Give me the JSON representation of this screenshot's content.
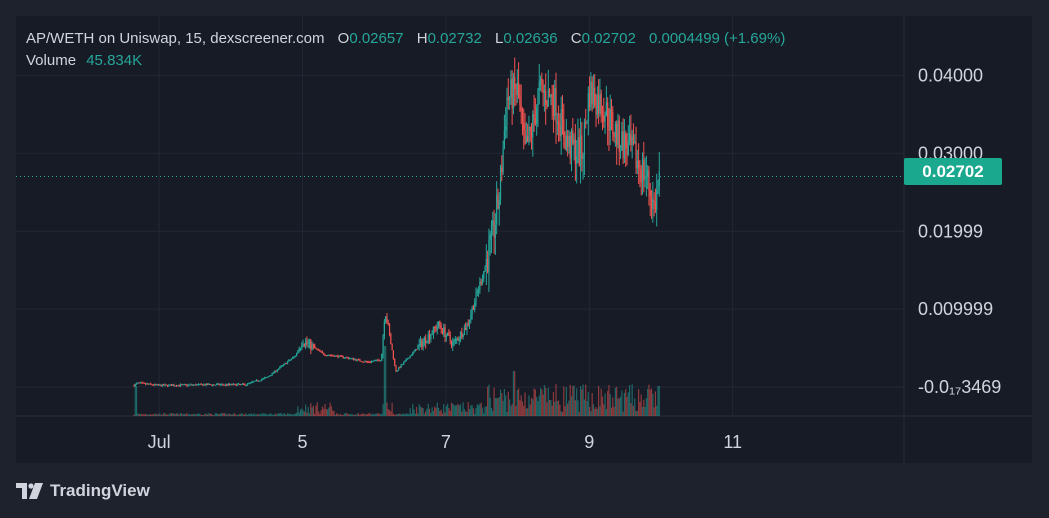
{
  "legend": {
    "title": "AP/WETH on Uniswap, 15, dexscreener.com",
    "o_label": "O",
    "o_value": "0.02657",
    "h_label": "H",
    "h_value": "0.02732",
    "l_label": "L",
    "l_value": "0.02636",
    "c_label": "C",
    "c_value": "0.02702",
    "change": "0.0004499 (+1.69%)",
    "volume_label": "Volume",
    "volume_value": "45.834K"
  },
  "price_tag": "0.02702",
  "branding": "TradingView",
  "colors": {
    "up": "#26a69a",
    "down": "#ef5350",
    "grid": "#232734",
    "background": "#171b26",
    "page": "#1e222d",
    "text": "#d1d4dc",
    "price_tag": "#1aa88e"
  },
  "chart_data": {
    "type": "candlestick",
    "title": "AP/WETH on Uniswap, 15, dexscreener.com",
    "x_tick_labels": [
      "Jul",
      "5",
      "7",
      "9",
      "11"
    ],
    "y_tick_labels": [
      "0.04000",
      "0.03000",
      "0.01999",
      "0.009999",
      "-0.0₁₇3469"
    ],
    "y_ticks": [
      0.04,
      0.03,
      0.01999,
      0.009999,
      0
    ],
    "ylim": [
      -0.0005,
      0.042
    ],
    "last_price": 0.02702,
    "price_keypoints": [
      {
        "t": 2.65,
        "p": 0.0002
      },
      {
        "t": 2.7,
        "p": 0.0005
      },
      {
        "t": 3.0,
        "p": 0.0002
      },
      {
        "t": 3.7,
        "p": 0.0003
      },
      {
        "t": 4.2,
        "p": 0.0003
      },
      {
        "t": 4.5,
        "p": 0.0012
      },
      {
        "t": 4.9,
        "p": 0.004
      },
      {
        "t": 5.0,
        "p": 0.006
      },
      {
        "t": 5.3,
        "p": 0.0042
      },
      {
        "t": 5.6,
        "p": 0.0038
      },
      {
        "t": 5.9,
        "p": 0.0032
      },
      {
        "t": 6.1,
        "p": 0.0035
      },
      {
        "t": 6.15,
        "p": 0.01
      },
      {
        "t": 6.3,
        "p": 0.002
      },
      {
        "t": 6.6,
        "p": 0.005
      },
      {
        "t": 6.9,
        "p": 0.008
      },
      {
        "t": 7.1,
        "p": 0.0055
      },
      {
        "t": 7.3,
        "p": 0.008
      },
      {
        "t": 7.5,
        "p": 0.014
      },
      {
        "t": 7.65,
        "p": 0.019
      },
      {
        "t": 7.75,
        "p": 0.025
      },
      {
        "t": 7.85,
        "p": 0.037
      },
      {
        "t": 8.0,
        "p": 0.038
      },
      {
        "t": 8.1,
        "p": 0.03
      },
      {
        "t": 8.2,
        "p": 0.033
      },
      {
        "t": 8.3,
        "p": 0.038
      },
      {
        "t": 8.5,
        "p": 0.037
      },
      {
        "t": 8.7,
        "p": 0.031
      },
      {
        "t": 8.9,
        "p": 0.03
      },
      {
        "t": 9.0,
        "p": 0.038
      },
      {
        "t": 9.2,
        "p": 0.036
      },
      {
        "t": 9.4,
        "p": 0.032
      },
      {
        "t": 9.6,
        "p": 0.03
      },
      {
        "t": 9.8,
        "p": 0.027
      },
      {
        "t": 9.9,
        "p": 0.023
      },
      {
        "t": 9.95,
        "p": 0.025
      },
      {
        "t": 9.98,
        "p": 0.027
      }
    ]
  }
}
